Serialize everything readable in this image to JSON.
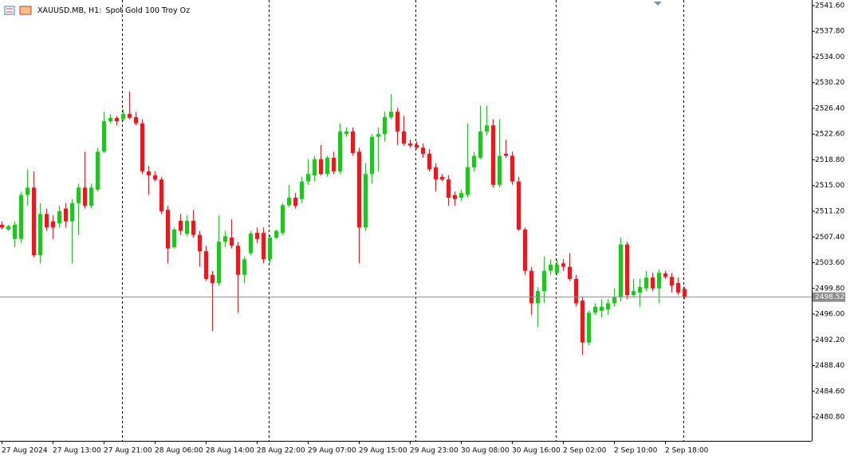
{
  "chart_data": {
    "type": "candlestick",
    "symbol": "XAUUSD.MB, H1:",
    "description": "Spot Gold 100 Troy Oz",
    "up_color": "#22c322",
    "down_color": "#e8191f",
    "categories": [
      "27 Aug 2024",
      null,
      null,
      null,
      null,
      null,
      null,
      null,
      "27 Aug 13:00",
      null,
      null,
      null,
      null,
      null,
      null,
      null,
      "27 Aug 21:00",
      null,
      null,
      null,
      null,
      null,
      null,
      null,
      "28 Aug 06:00",
      null,
      null,
      null,
      null,
      null,
      null,
      null,
      "28 Aug 14:00",
      null,
      null,
      null,
      null,
      null,
      null,
      null,
      "28 Aug 22:00",
      null,
      null,
      null,
      null,
      null,
      null,
      null,
      "29 Aug 07:00",
      null,
      null,
      null,
      null,
      null,
      null,
      null,
      "29 Aug 15:00",
      null,
      null,
      null,
      null,
      null,
      null,
      null,
      "29 Aug 23:00",
      null,
      null,
      null,
      null,
      null,
      null,
      null,
      "30 Aug 08:00",
      null,
      null,
      null,
      null,
      null,
      null,
      null,
      "30 Aug 16:00",
      null,
      null,
      null,
      null,
      null,
      null,
      null,
      "2 Sep 02:00",
      null,
      null,
      null,
      null,
      null,
      null,
      null,
      "2 Sep 10:00",
      null,
      null,
      null,
      null,
      null,
      null,
      null,
      "2 Sep 18:00",
      null,
      null,
      null
    ],
    "open": [
      2509.2,
      2508.5,
      2507.1,
      2507.1,
      2513.6,
      2514.7,
      2504.7,
      2510.8,
      2509.7,
      2509.4,
      2511.6,
      2509.7,
      2512.4,
      2514.7,
      2512.0,
      2514.4,
      2520.0,
      2524.5,
      2525.0,
      2524.8,
      2525.6,
      2525.1,
      2524.2,
      2517.1,
      2516.5,
      2515.9,
      2511.4,
      2505.9,
      2509.8,
      2507.9,
      2509.8,
      2507.7,
      2505.3,
      2501.8,
      2500.6,
      2506.7,
      2507.3,
      2506.1,
      2501.8,
      2505.0,
      2508.0,
      2508.0,
      2504.1,
      2507.3,
      2508.0,
      2512.1,
      2513.2,
      2513.0,
      2515.6,
      2516.5,
      2518.9,
      2516.7,
      2519.1,
      2517.1,
      2522.6,
      2523.0,
      2520.0,
      2508.8,
      2516.7,
      2522.2,
      2522.6,
      2525.1,
      2525.9,
      2523.0,
      2521.2,
      2521.0,
      2520.6,
      2519.7,
      2517.7,
      2516.3,
      2515.9,
      2513.6,
      2513.2,
      2513.6,
      2517.7,
      2519.1,
      2523.0,
      2523.9,
      2515.1,
      2519.7,
      2519.4,
      2515.6,
      2508.5,
      2502.4,
      2497.6,
      2499.4,
      2502.4,
      2502.1,
      2503.5,
      2503.0,
      2501.2,
      2498.0,
      2491.8,
      2496.2,
      2496.5,
      2496.7,
      2497.6,
      2498.5,
      2506.3,
      2498.8,
      2499.2,
      2499.8,
      2501.4,
      2499.8,
      2502.0,
      2501.5,
      2500.6,
      2499.7
    ],
    "high": [
      2509.7,
      2509.2,
      2509.7,
      2514.1,
      2517.4,
      2517.1,
      2512.4,
      2511.6,
      2510.6,
      2512.0,
      2512.4,
      2513.0,
      2515.3,
      2520.0,
      2515.3,
      2520.6,
      2525.9,
      2525.6,
      2525.3,
      2526.2,
      2528.9,
      2525.9,
      2524.8,
      2517.9,
      2517.1,
      2516.3,
      2512.0,
      2508.8,
      2510.8,
      2510.6,
      2511.4,
      2508.3,
      2506.1,
      2502.4,
      2510.6,
      2508.3,
      2510.0,
      2506.7,
      2504.5,
      2508.3,
      2508.8,
      2508.8,
      2507.7,
      2508.5,
      2512.4,
      2515.1,
      2513.9,
      2516.3,
      2518.9,
      2519.4,
      2521.0,
      2519.4,
      2520.0,
      2524.2,
      2523.6,
      2523.6,
      2520.6,
      2518.3,
      2522.6,
      2523.6,
      2525.9,
      2528.5,
      2526.5,
      2525.3,
      2521.8,
      2521.5,
      2521.2,
      2520.4,
      2518.3,
      2516.7,
      2516.5,
      2514.1,
      2514.4,
      2524.2,
      2520.0,
      2526.8,
      2526.8,
      2524.8,
      2524.8,
      2521.8,
      2520.0,
      2516.3,
      2508.8,
      2503.0,
      2500.0,
      2504.5,
      2504.1,
      2504.1,
      2504.1,
      2505.0,
      2501.8,
      2498.6,
      2496.5,
      2497.6,
      2498.2,
      2498.2,
      2499.8,
      2507.3,
      2506.7,
      2501.2,
      2501.2,
      2502.4,
      2502.1,
      2502.6,
      2502.4,
      2502.1,
      2501.4,
      2500.0
    ],
    "low": [
      2508.5,
      2508.3,
      2505.9,
      2506.5,
      2512.0,
      2504.4,
      2503.5,
      2508.3,
      2507.1,
      2508.8,
      2508.8,
      2503.5,
      2507.7,
      2511.6,
      2511.6,
      2514.1,
      2519.8,
      2524.2,
      2523.9,
      2524.5,
      2524.8,
      2523.9,
      2516.7,
      2513.6,
      2515.6,
      2510.8,
      2503.5,
      2505.7,
      2507.7,
      2507.5,
      2507.3,
      2503.0,
      2500.9,
      2493.5,
      2500.2,
      2505.9,
      2505.7,
      2496.2,
      2500.6,
      2504.7,
      2506.5,
      2503.5,
      2503.5,
      2507.1,
      2507.7,
      2511.8,
      2511.6,
      2512.4,
      2515.1,
      2515.6,
      2516.5,
      2516.3,
      2516.7,
      2516.7,
      2522.2,
      2519.4,
      2503.5,
      2508.3,
      2515.3,
      2517.1,
      2521.5,
      2524.8,
      2521.0,
      2520.9,
      2520.6,
      2520.4,
      2519.1,
      2517.1,
      2514.1,
      2515.6,
      2512.0,
      2512.0,
      2512.7,
      2513.2,
      2517.1,
      2518.9,
      2522.4,
      2514.7,
      2514.7,
      2519.1,
      2515.1,
      2508.3,
      2501.8,
      2495.9,
      2494.1,
      2497.6,
      2501.8,
      2501.8,
      2502.4,
      2500.9,
      2497.1,
      2490.0,
      2491.4,
      2495.9,
      2495.5,
      2495.9,
      2497.1,
      2497.9,
      2498.2,
      2498.5,
      2497.1,
      2499.4,
      2499.4,
      2497.6,
      2501.2,
      2499.2,
      2498.8,
      2498.2
    ],
    "close": [
      2508.8,
      2509.0,
      2509.2,
      2513.6,
      2514.7,
      2504.7,
      2510.8,
      2508.8,
      2508.8,
      2511.2,
      2509.7,
      2512.4,
      2514.7,
      2512.0,
      2514.7,
      2520.0,
      2524.5,
      2525.0,
      2524.5,
      2525.6,
      2525.0,
      2524.2,
      2517.1,
      2516.5,
      2515.9,
      2511.2,
      2505.7,
      2508.5,
      2508.3,
      2509.8,
      2507.7,
      2505.3,
      2501.2,
      2500.6,
      2506.7,
      2507.5,
      2506.1,
      2501.8,
      2504.1,
      2507.9,
      2507.1,
      2504.1,
      2507.3,
      2508.3,
      2512.1,
      2513.2,
      2512.0,
      2515.6,
      2516.7,
      2518.9,
      2516.7,
      2519.1,
      2517.1,
      2523.0,
      2523.0,
      2519.8,
      2508.8,
      2516.7,
      2522.2,
      2522.6,
      2525.1,
      2525.9,
      2523.0,
      2521.2,
      2520.9,
      2520.6,
      2519.7,
      2517.4,
      2515.9,
      2515.9,
      2513.2,
      2513.0,
      2513.9,
      2517.7,
      2519.4,
      2523.0,
      2523.9,
      2515.1,
      2519.4,
      2519.4,
      2515.6,
      2508.5,
      2502.4,
      2497.6,
      2499.4,
      2502.4,
      2503.3,
      2503.3,
      2503.0,
      2501.2,
      2497.6,
      2491.8,
      2496.2,
      2497.1,
      2497.1,
      2497.6,
      2498.5,
      2506.3,
      2498.8,
      2499.4,
      2500.0,
      2501.4,
      2499.8,
      2502.1,
      2501.5,
      2500.2,
      2499.2,
      2498.52
    ],
    "last_price": 2498.52,
    "ylim": [
      2477.27,
      2542.42
    ],
    "yticks": [
      {
        "value": 2541.6,
        "label": "2541.60"
      },
      {
        "value": 2537.8,
        "label": "2537.80"
      },
      {
        "value": 2534.0,
        "label": "2534.00"
      },
      {
        "value": 2530.2,
        "label": "2530.20"
      },
      {
        "value": 2526.4,
        "label": "2526.40"
      },
      {
        "value": 2522.6,
        "label": "2522.60"
      },
      {
        "value": 2518.8,
        "label": "2518.80"
      },
      {
        "value": 2515.0,
        "label": "2515.00"
      },
      {
        "value": 2511.2,
        "label": "2511.20"
      },
      {
        "value": 2507.4,
        "label": "2507.40"
      },
      {
        "value": 2503.6,
        "label": "2503.60"
      },
      {
        "value": 2499.8,
        "label": "2499.80"
      },
      {
        "value": 2496.0,
        "label": "2496.00"
      },
      {
        "value": 2492.2,
        "label": "2492.20"
      },
      {
        "value": 2488.4,
        "label": "2488.40"
      },
      {
        "value": 2484.6,
        "label": "2484.60"
      },
      {
        "value": 2480.8,
        "label": "2480.80"
      }
    ]
  }
}
